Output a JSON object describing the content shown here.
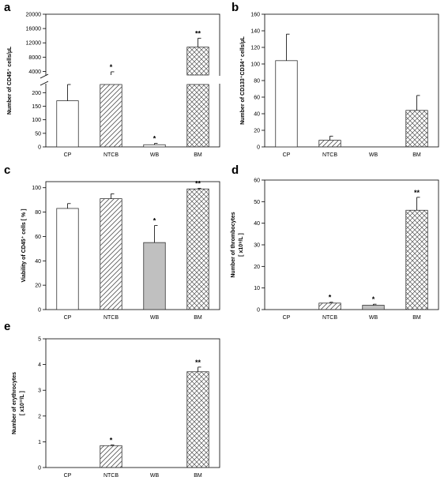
{
  "chart_data": [
    {
      "panel": "a",
      "type": "bar",
      "categories": [
        "CP",
        "NTCB",
        "WB",
        "BM"
      ],
      "values": [
        170,
        3000,
        8,
        10800
      ],
      "errors": [
        60,
        900,
        5,
        2500
      ],
      "fills": [
        "white",
        "diagonal",
        "white",
        "crosshatch"
      ],
      "significance": [
        "",
        "*",
        "*",
        "**"
      ],
      "ylabel": "Number of CD45⁺ cells/µL",
      "y_broken": true,
      "lower_ylim": [
        0,
        230
      ],
      "lower_ticks": [
        0,
        50,
        100,
        150,
        200
      ],
      "upper_ylim": [
        3000,
        20000
      ],
      "upper_ticks": [
        4000,
        8000,
        12000,
        16000,
        20000
      ]
    },
    {
      "panel": "b",
      "type": "bar",
      "categories": [
        "CP",
        "NTCB",
        "WB",
        "BM"
      ],
      "values": [
        104,
        8,
        0,
        44
      ],
      "errors": [
        32,
        5,
        0,
        18
      ],
      "fills": [
        "white",
        "diagonal",
        "white",
        "crosshatch"
      ],
      "significance": [
        "",
        "",
        "",
        ""
      ],
      "ylabel": "Number of CD133⁺CD34⁺ cells/µL",
      "ylim": [
        0,
        160
      ],
      "ticks": [
        0,
        20,
        40,
        60,
        80,
        100,
        120,
        140,
        160
      ]
    },
    {
      "panel": "c",
      "type": "bar",
      "categories": [
        "CP",
        "NTCB",
        "WB",
        "BM"
      ],
      "values": [
        83,
        91,
        55,
        99
      ],
      "errors": [
        4,
        4,
        14,
        0.5
      ],
      "fills": [
        "white",
        "diagonal",
        "gray",
        "crosshatch"
      ],
      "significance": [
        "",
        "",
        "*",
        "**"
      ],
      "ylabel": "Viability of CD45⁺ cells [ % ]",
      "ylim": [
        0,
        105
      ],
      "ticks": [
        0,
        20,
        40,
        60,
        80,
        100
      ]
    },
    {
      "panel": "d",
      "type": "bar",
      "categories": [
        "CP",
        "NTCB",
        "WB",
        "BM"
      ],
      "values": [
        0,
        3,
        2,
        46
      ],
      "errors": [
        0,
        0.4,
        0.5,
        6
      ],
      "fills": [
        "white",
        "diagonal",
        "gray",
        "crosshatch"
      ],
      "significance": [
        "",
        "*",
        "*",
        "**"
      ],
      "ylabel": "Number of thrombocytes",
      "ylabel2": "[ x10⁹/L ]",
      "ylim": [
        0,
        60
      ],
      "ticks": [
        0,
        10,
        20,
        30,
        40,
        50,
        60
      ]
    },
    {
      "panel": "e",
      "type": "bar",
      "categories": [
        "CP",
        "NTCB",
        "WB",
        "BM"
      ],
      "values": [
        0,
        0.85,
        0,
        3.72
      ],
      "errors": [
        0,
        0.03,
        0,
        0.18
      ],
      "fills": [
        "white",
        "diagonal",
        "white",
        "crosshatch"
      ],
      "significance": [
        "",
        "*",
        "",
        "**"
      ],
      "ylabel": "Number of erythrocytes",
      "ylabel2": "[ x10¹²/L ]",
      "ylim": [
        0,
        5
      ],
      "ticks": [
        0,
        1,
        2,
        3,
        4,
        5
      ]
    }
  ],
  "colors": {
    "axis": "#000000",
    "bar_stroke": "#333333",
    "hatch": "#555555",
    "gray_fill": "#c0c0c0",
    "white_fill": "#ffffff"
  }
}
